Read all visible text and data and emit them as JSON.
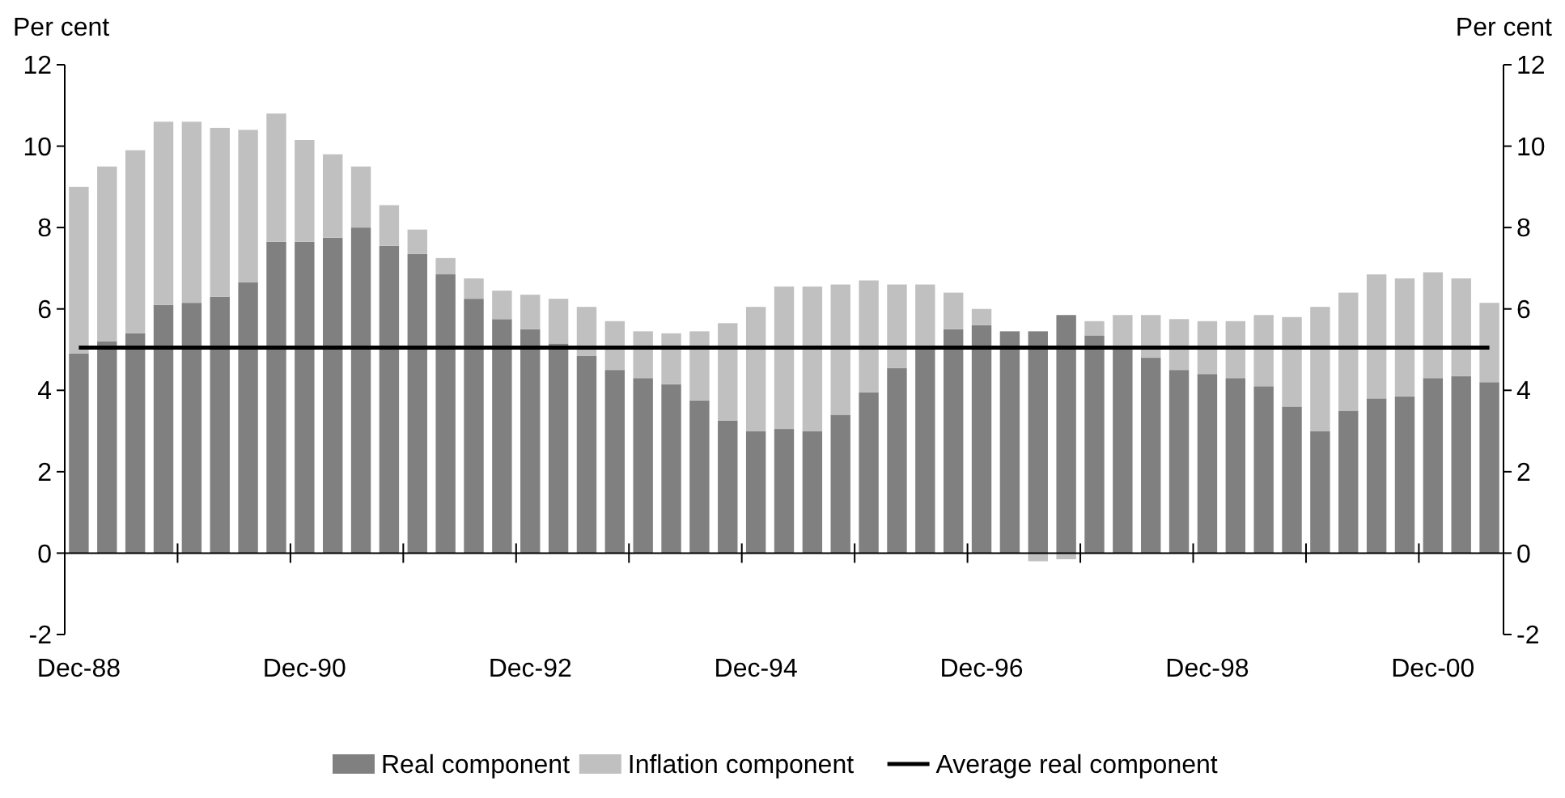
{
  "chart_data": {
    "type": "bar",
    "stacked": true,
    "ylabel": "Per cent",
    "y2label": "Per cent",
    "categories": [
      "Dec-88",
      null,
      null,
      null,
      null,
      null,
      null,
      null,
      "Dec-90",
      null,
      null,
      null,
      null,
      null,
      null,
      null,
      "Dec-92",
      null,
      null,
      null,
      null,
      null,
      null,
      null,
      "Dec-94",
      null,
      null,
      null,
      null,
      null,
      null,
      null,
      "Dec-96",
      null,
      null,
      null,
      null,
      null,
      null,
      null,
      "Dec-98",
      null,
      null,
      null,
      null,
      null,
      null,
      null,
      "Dec-00",
      null,
      null
    ],
    "ylim": [
      -2,
      12
    ],
    "yticks": [
      -2,
      0,
      2,
      4,
      6,
      8,
      10,
      12
    ],
    "y2lim": [
      -2,
      12
    ],
    "y2ticks": [
      -2,
      0,
      2,
      4,
      6,
      8,
      10,
      12
    ],
    "legend": "bottom",
    "grid": false,
    "series": [
      {
        "name": "Real component",
        "color": "#808080",
        "values": [
          4.9,
          5.2,
          5.4,
          6.1,
          6.15,
          6.3,
          6.65,
          7.65,
          7.65,
          7.75,
          8.0,
          7.55,
          7.35,
          6.85,
          6.25,
          5.75,
          5.5,
          5.15,
          4.85,
          4.5,
          4.3,
          4.15,
          3.75,
          3.25,
          3.0,
          3.05,
          3.0,
          3.4,
          3.95,
          4.55,
          5.05,
          5.5,
          5.6,
          5.45,
          5.45,
          5.85,
          5.35,
          5.1,
          4.8,
          4.5,
          4.4,
          4.3,
          4.1,
          3.6,
          3.0,
          3.5,
          3.8,
          3.85,
          4.3,
          4.35,
          4.2
        ]
      },
      {
        "name": "Inflation component",
        "color": "#c0c0c0",
        "values": [
          4.1,
          4.3,
          4.5,
          4.5,
          4.45,
          4.15,
          3.75,
          3.15,
          2.5,
          2.05,
          1.5,
          1.0,
          0.6,
          0.4,
          0.5,
          0.7,
          0.85,
          1.1,
          1.2,
          1.2,
          1.15,
          1.25,
          1.7,
          2.4,
          3.05,
          3.5,
          3.55,
          3.2,
          2.75,
          2.05,
          1.55,
          0.9,
          0.4,
          0,
          -0.2,
          -0.15,
          0.35,
          0.75,
          1.05,
          1.25,
          1.3,
          1.4,
          1.75,
          2.2,
          3.05,
          2.9,
          3.05,
          2.9,
          2.6,
          2.4,
          1.95
        ]
      },
      {
        "name": "Average real component",
        "type": "line",
        "color": "#000000",
        "values": [
          5.05,
          5.05,
          5.05,
          5.05,
          5.05,
          5.05,
          5.05,
          5.05,
          5.05,
          5.05,
          5.05,
          5.05,
          5.05,
          5.05,
          5.05,
          5.05,
          5.05,
          5.05,
          5.05,
          5.05,
          5.05,
          5.05,
          5.05,
          5.05,
          5.05,
          5.05,
          5.05,
          5.05,
          5.05,
          5.05,
          5.05,
          5.05,
          5.05,
          5.05,
          5.05,
          5.05,
          5.05,
          5.05,
          5.05,
          5.05,
          5.05,
          5.05,
          5.05,
          5.05,
          5.05,
          5.05,
          5.05,
          5.05,
          5.05,
          5.05,
          5.05
        ]
      }
    ]
  }
}
